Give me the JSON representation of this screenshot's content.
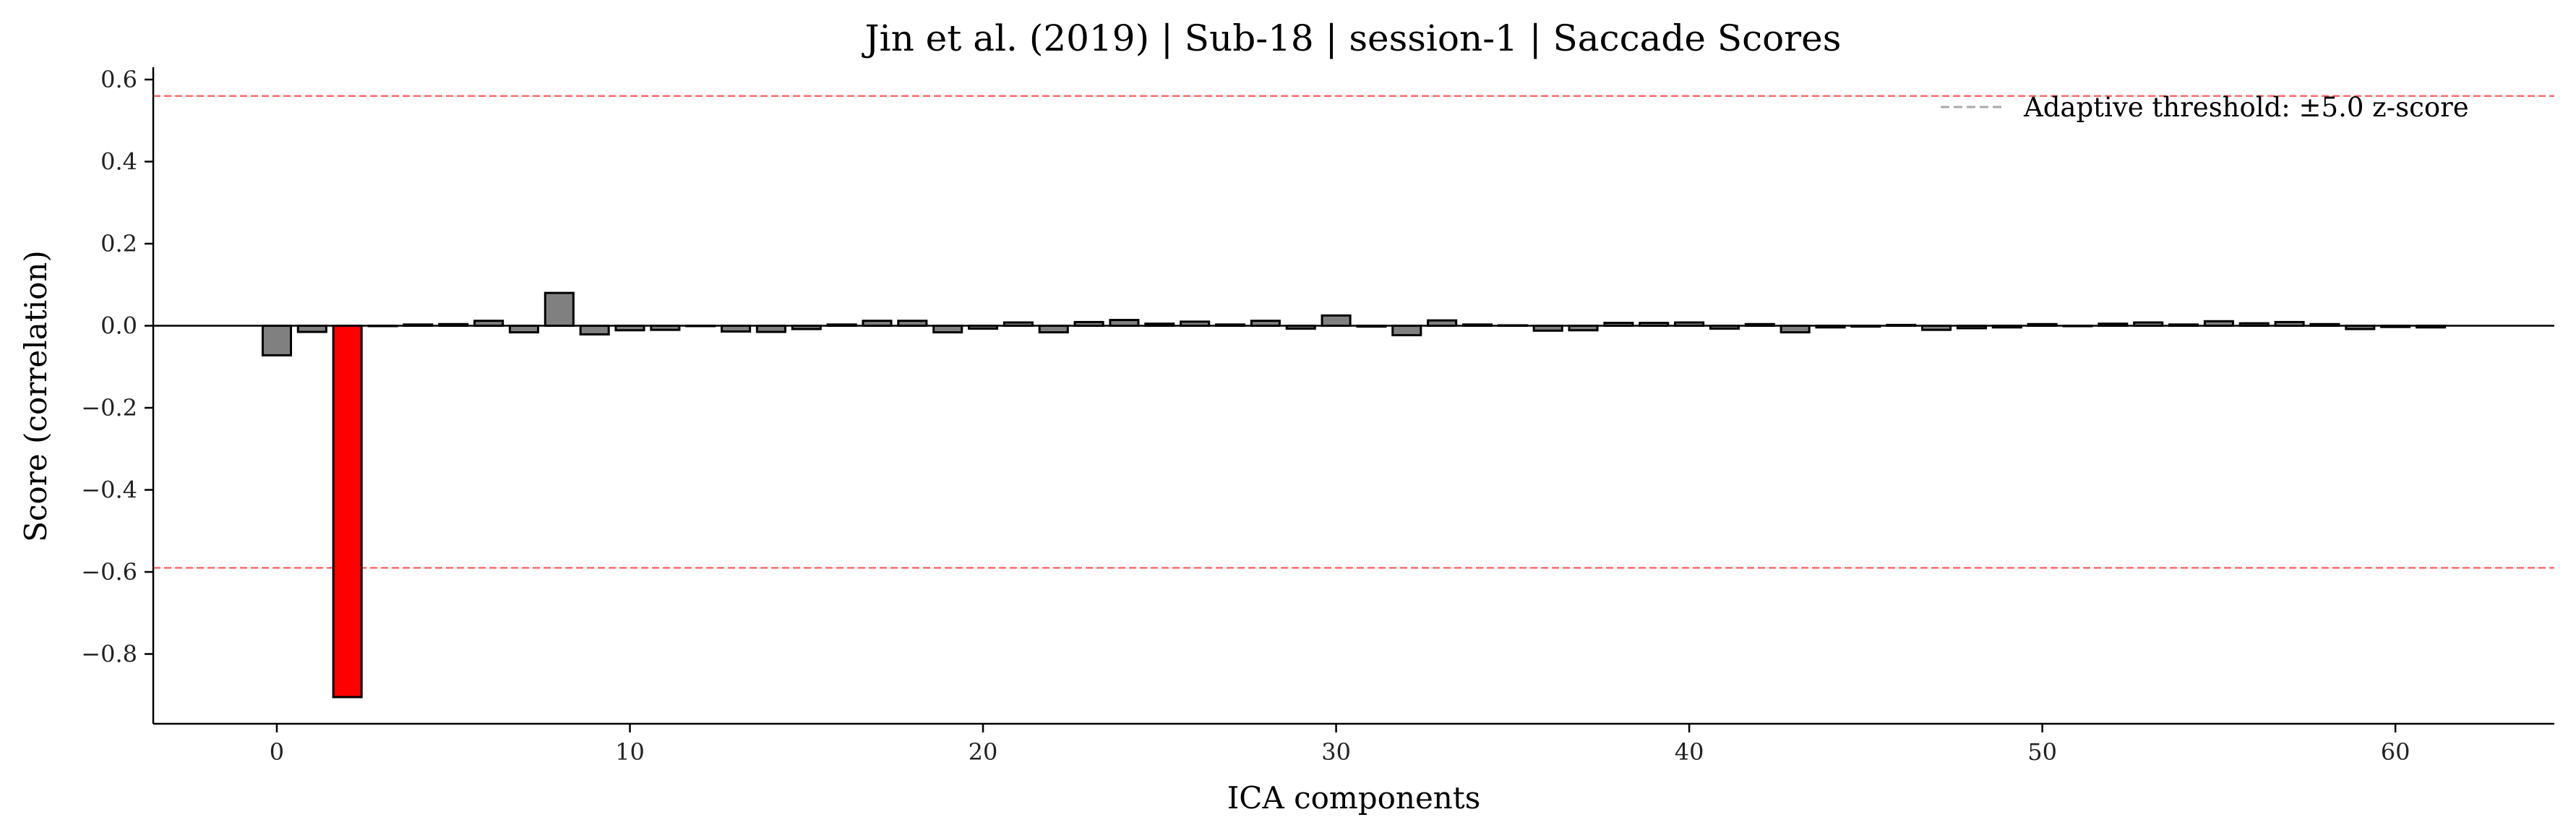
{
  "chart_data": {
    "type": "bar",
    "title": "Jin et al. (2019) | Sub-18 | session-1 | Saccade Scores",
    "xlabel": "ICA components",
    "ylabel": "Score (correlation)",
    "xlim": [
      -3.5,
      64.5
    ],
    "ylim": [
      -0.97,
      0.63
    ],
    "xticks": [
      0,
      10,
      20,
      30,
      40,
      50,
      60
    ],
    "xtick_labels": [
      "0",
      "10",
      "20",
      "30",
      "40",
      "50",
      "60"
    ],
    "yticks": [
      0.6,
      0.4,
      0.2,
      0.0,
      -0.2,
      -0.4,
      -0.6,
      -0.8
    ],
    "ytick_labels": [
      "0.6",
      "0.4",
      "0.2",
      "0.0",
      "−0.2",
      "−0.4",
      "−0.6",
      "−0.8"
    ],
    "x": [
      0,
      1,
      2,
      3,
      4,
      5,
      6,
      7,
      8,
      9,
      10,
      11,
      12,
      13,
      14,
      15,
      16,
      17,
      18,
      19,
      20,
      21,
      22,
      23,
      24,
      25,
      26,
      27,
      28,
      29,
      30,
      31,
      32,
      33,
      34,
      35,
      36,
      37,
      38,
      39,
      40,
      41,
      42,
      43,
      44,
      45,
      46,
      47,
      48,
      49,
      50,
      51,
      52,
      53,
      54,
      55,
      56,
      57,
      58,
      59,
      60,
      61
    ],
    "values": [
      -0.072,
      -0.015,
      -0.905,
      0.0,
      0.003,
      0.004,
      0.012,
      -0.016,
      0.08,
      -0.021,
      -0.011,
      -0.01,
      0.0,
      -0.014,
      -0.015,
      -0.008,
      0.003,
      0.012,
      0.012,
      -0.016,
      -0.007,
      0.008,
      -0.016,
      0.009,
      0.014,
      0.005,
      0.01,
      0.003,
      0.012,
      -0.007,
      0.025,
      -0.002,
      -0.023,
      0.013,
      0.003,
      0.001,
      -0.012,
      -0.011,
      0.007,
      0.007,
      0.008,
      -0.007,
      0.004,
      -0.016,
      -0.004,
      -0.002,
      0.002,
      -0.01,
      -0.006,
      -0.004,
      0.004,
      -0.001,
      0.005,
      0.008,
      0.003,
      0.011,
      0.006,
      0.009,
      0.004,
      -0.008,
      -0.003,
      -0.004
    ],
    "flagged_components": [
      2
    ],
    "bar_color": "#808080",
    "flagged_color": "#ff0000",
    "bar_edge_color": "#000000",
    "threshold_lines": [
      0.56,
      -0.59
    ],
    "threshold_color": "#ff6b6b",
    "zero_line": 0.0,
    "legend": {
      "placement": "upper right",
      "entries": [
        {
          "label": "Adaptive threshold: ±5.0 z-score",
          "style": "dashed",
          "color": "#aaaaaa"
        }
      ]
    }
  }
}
